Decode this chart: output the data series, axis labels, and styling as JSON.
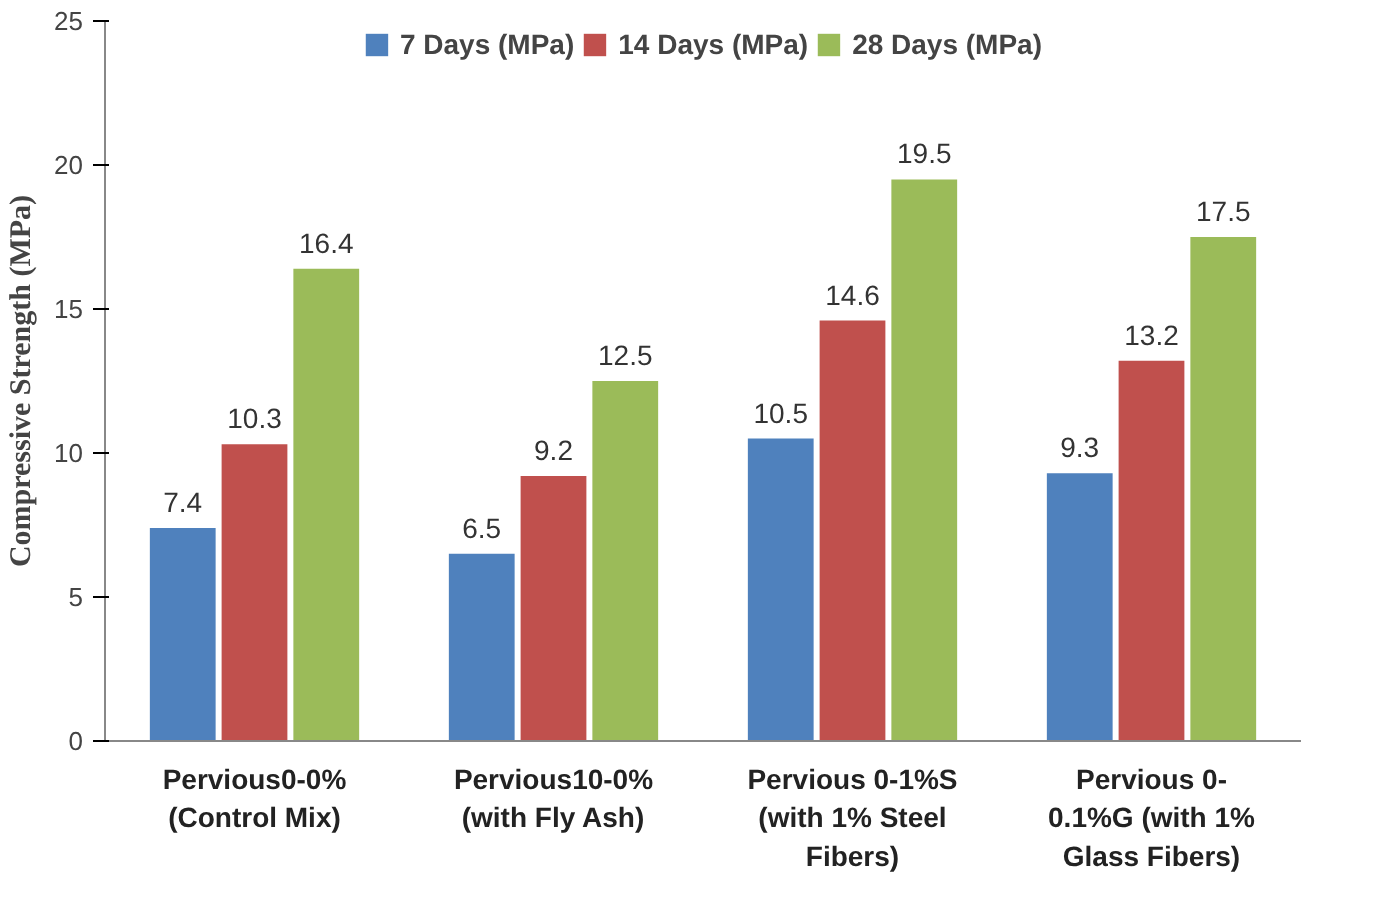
{
  "chart_data": {
    "type": "bar",
    "ylabel": "Compressive Strength (MPa)",
    "categories": [
      "Pervious0-0%\n(Control Mix)",
      "Pervious10-0%\n(with Fly Ash)",
      "Pervious 0-1%S\n(with 1% Steel\nFibers)",
      "Pervious 0-\n0.1%G (with 1%\nGlass Fibers)"
    ],
    "series": [
      {
        "name": "7 Days (MPa)",
        "color": "#4f81bd",
        "values": [
          7.4,
          6.5,
          10.5,
          9.3
        ]
      },
      {
        "name": "14 Days (MPa)",
        "color": "#c0504d",
        "values": [
          10.3,
          9.2,
          14.6,
          13.2
        ]
      },
      {
        "name": "28 Days (MPa)",
        "color": "#9bbb59",
        "values": [
          16.4,
          12.5,
          19.5,
          17.5
        ]
      }
    ],
    "ylim": [
      0,
      25
    ],
    "yticks": [
      0,
      5,
      10,
      15,
      20,
      25
    ],
    "grid": false,
    "legend": "top",
    "data_labels": true
  }
}
